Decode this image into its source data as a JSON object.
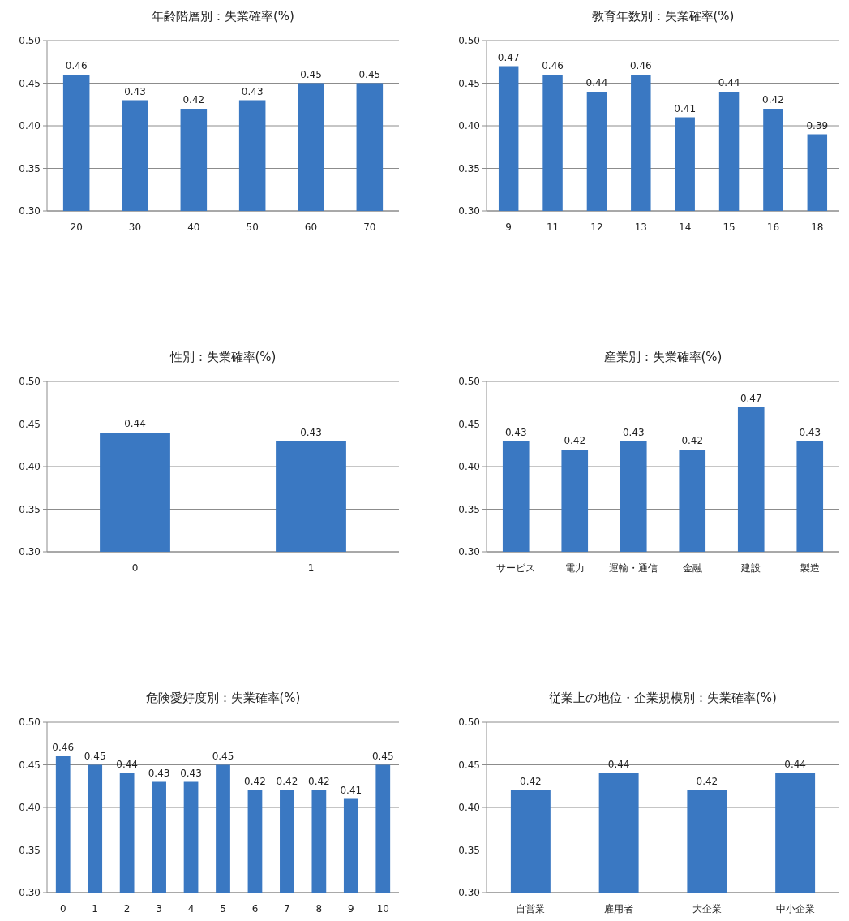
{
  "chart_data": [
    {
      "type": "bar",
      "title": "年齢階層別：失業確率(%)",
      "categories": [
        "20",
        "30",
        "40",
        "50",
        "60",
        "70"
      ],
      "values": [
        0.46,
        0.43,
        0.42,
        0.43,
        0.45,
        0.45
      ],
      "color": "#3a78c2",
      "ylim": [
        0.3,
        0.5
      ],
      "yticks": [
        {
          "value": 0.3,
          "label": "0.30"
        },
        {
          "value": 0.35,
          "label": "0.35"
        },
        {
          "value": 0.4,
          "label": "0.40"
        },
        {
          "value": 0.45,
          "label": "0.45"
        },
        {
          "value": 0.5,
          "label": "0.50"
        }
      ],
      "grid": "y",
      "data_labels": true
    },
    {
      "type": "bar",
      "title": "教育年数別：失業確率(%)",
      "categories": [
        "9",
        "11",
        "12",
        "13",
        "14",
        "15",
        "16",
        "18"
      ],
      "values": [
        0.47,
        0.46,
        0.44,
        0.46,
        0.41,
        0.44,
        0.42,
        0.39
      ],
      "color": "#3a78c2",
      "ylim": [
        0.3,
        0.5
      ],
      "yticks": [
        {
          "value": 0.3,
          "label": "0.30"
        },
        {
          "value": 0.35,
          "label": "0.35"
        },
        {
          "value": 0.4,
          "label": "0.40"
        },
        {
          "value": 0.45,
          "label": "0.45"
        },
        {
          "value": 0.5,
          "label": "0.50"
        }
      ],
      "grid": "y",
      "data_labels": true
    },
    {
      "type": "bar",
      "title": "性別：失業確率(%)",
      "categories": [
        "0",
        "1"
      ],
      "values": [
        0.44,
        0.43
      ],
      "color": "#3a78c2",
      "ylim": [
        0.3,
        0.5
      ],
      "yticks": [
        {
          "value": 0.3,
          "label": "0.30"
        },
        {
          "value": 0.35,
          "label": "0.35"
        },
        {
          "value": 0.4,
          "label": "0.40"
        },
        {
          "value": 0.45,
          "label": "0.45"
        },
        {
          "value": 0.5,
          "label": "0.50"
        }
      ],
      "grid": "y",
      "data_labels": true
    },
    {
      "type": "bar",
      "title": "産業別：失業確率(%)",
      "categories": [
        "サービス",
        "電力",
        "運輸・通信",
        "金融",
        "建設",
        "製造"
      ],
      "values": [
        0.43,
        0.42,
        0.43,
        0.42,
        0.47,
        0.43
      ],
      "color": "#3a78c2",
      "ylim": [
        0.3,
        0.5
      ],
      "yticks": [
        {
          "value": 0.3,
          "label": "0.30"
        },
        {
          "value": 0.35,
          "label": "0.35"
        },
        {
          "value": 0.4,
          "label": "0.40"
        },
        {
          "value": 0.45,
          "label": "0.45"
        },
        {
          "value": 0.5,
          "label": "0.50"
        }
      ],
      "grid": "y",
      "data_labels": true
    },
    {
      "type": "bar",
      "title": "危険愛好度別：失業確率(%)",
      "categories": [
        "0",
        "1",
        "2",
        "3",
        "4",
        "5",
        "6",
        "7",
        "8",
        "9",
        "10"
      ],
      "values": [
        0.46,
        0.45,
        0.44,
        0.43,
        0.43,
        0.45,
        0.42,
        0.42,
        0.42,
        0.41,
        0.45
      ],
      "color": "#3a78c2",
      "ylim": [
        0.3,
        0.5
      ],
      "yticks": [
        {
          "value": 0.3,
          "label": "0.30"
        },
        {
          "value": 0.35,
          "label": "0.35"
        },
        {
          "value": 0.4,
          "label": "0.40"
        },
        {
          "value": 0.45,
          "label": "0.45"
        },
        {
          "value": 0.5,
          "label": "0.50"
        }
      ],
      "grid": "y",
      "data_labels": true
    },
    {
      "type": "bar",
      "title": "従業上の地位・企業規模別：失業確率(%)",
      "categories": [
        "自営業",
        "雇用者",
        "大企業",
        "中小企業"
      ],
      "values": [
        0.42,
        0.44,
        0.42,
        0.44
      ],
      "color": "#3a78c2",
      "ylim": [
        0.3,
        0.5
      ],
      "yticks": [
        {
          "value": 0.3,
          "label": "0.30"
        },
        {
          "value": 0.35,
          "label": "0.35"
        },
        {
          "value": 0.4,
          "label": "0.40"
        },
        {
          "value": 0.45,
          "label": "0.45"
        },
        {
          "value": 0.5,
          "label": "0.50"
        }
      ],
      "grid": "y",
      "data_labels": true
    }
  ]
}
